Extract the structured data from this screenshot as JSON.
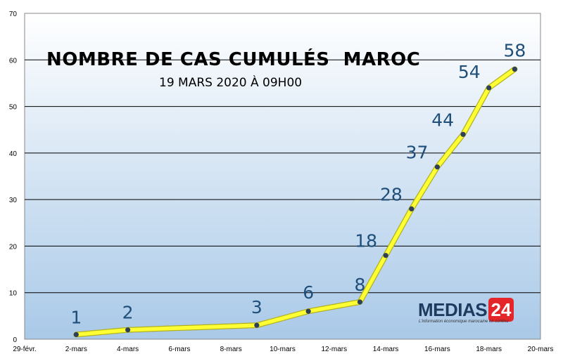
{
  "chart_data": {
    "type": "line",
    "title": "NOMBRE DE CAS CUMULÉS  MAROC",
    "subtitle": "19 MARS 2020 À 09H00",
    "x_tick_labels": [
      "29-févr.",
      "2-mars",
      "4-mars",
      "6-mars",
      "8-mars",
      "10-mars",
      "12-mars",
      "14-mars",
      "16-mars",
      "18-mars",
      "20-mars"
    ],
    "y_tick_labels": [
      "0",
      "10",
      "20",
      "30",
      "40",
      "50",
      "60",
      "70"
    ],
    "ylim": [
      0,
      70
    ],
    "xlim": [
      "2020-02-29",
      "2020-03-20"
    ],
    "grid": true,
    "series": [
      {
        "x": [
          "2020-03-02",
          "2020-03-04",
          "2020-03-09",
          "2020-03-11",
          "2020-03-13",
          "2020-03-14",
          "2020-03-15",
          "2020-03-16",
          "2020-03-17",
          "2020-03-18",
          "2020-03-19"
        ],
        "values": [
          1,
          2,
          3,
          6,
          8,
          18,
          28,
          37,
          44,
          54,
          58
        ],
        "color": "#ffff33",
        "marker_color": "#2e4057"
      }
    ],
    "data_labels": [
      {
        "x": "2020-03-02",
        "text": "1"
      },
      {
        "x": "2020-03-04",
        "text": "2"
      },
      {
        "x": "2020-03-09",
        "text": "3"
      },
      {
        "x": "2020-03-11",
        "text": "6"
      },
      {
        "x": "2020-03-13",
        "text": "8"
      },
      {
        "x": "2020-03-14",
        "text": "18"
      },
      {
        "x": "2020-03-15",
        "text": "28"
      },
      {
        "x": "2020-03-16",
        "text": "37"
      },
      {
        "x": "2020-03-17",
        "text": "44"
      },
      {
        "x": "2020-03-18",
        "text": "54"
      },
      {
        "x": "2020-03-19",
        "text": "58"
      }
    ]
  },
  "logo": {
    "name": "MEDIAS",
    "badge": "24",
    "tagline": "L'information économique marocaine en continu"
  },
  "colors": {
    "plot_bg_top": "#ffffff",
    "plot_bg_bottom": "#a9c9e8",
    "line": "#ffff33",
    "line_edge": "#b0b020",
    "marker": "#2e4057",
    "label": "#1f4e79",
    "logo_red": "#e4262b",
    "logo_navy": "#1f3a5f"
  }
}
